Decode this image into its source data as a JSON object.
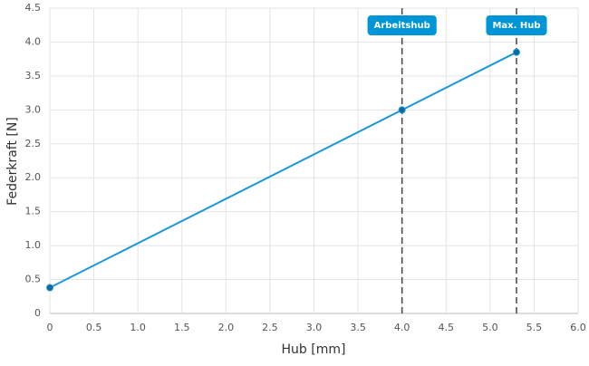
{
  "chart_data": {
    "type": "line",
    "x_label": "Hub [mm]",
    "y_label": "Federkraft [N]",
    "x": [
      0,
      4,
      5.3
    ],
    "values": [
      0.38,
      3.0,
      3.85
    ],
    "color": "#1a97d5",
    "marker_color": "#11689a",
    "xlim": [
      0,
      6
    ],
    "ylim": [
      0,
      4.5
    ],
    "xticks": [
      0,
      0.5,
      {
        "value": 1,
        "label": "1.0"
      },
      1.5,
      {
        "value": 2,
        "label": "2.0"
      },
      2.5,
      {
        "value": 3,
        "label": "3.0"
      },
      3.5,
      {
        "value": 4,
        "label": "4.0"
      },
      4.5,
      {
        "value": 5,
        "label": "5.0"
      },
      5.5,
      {
        "value": 6,
        "label": "6.0"
      }
    ],
    "yticks": [
      0,
      0.5,
      {
        "value": 1,
        "label": "1.0"
      },
      1.5,
      {
        "value": 2,
        "label": "2.0"
      },
      2.5,
      {
        "value": 3,
        "label": "3.0"
      },
      3.5,
      {
        "value": 4,
        "label": "4.0"
      },
      4.5
    ],
    "grid": true,
    "annotations": [
      {
        "x": 4,
        "label": "Arbeitshub"
      },
      {
        "x": 5.3,
        "label": "Max. Hub"
      }
    ],
    "annotation_color": "#0095d6"
  }
}
